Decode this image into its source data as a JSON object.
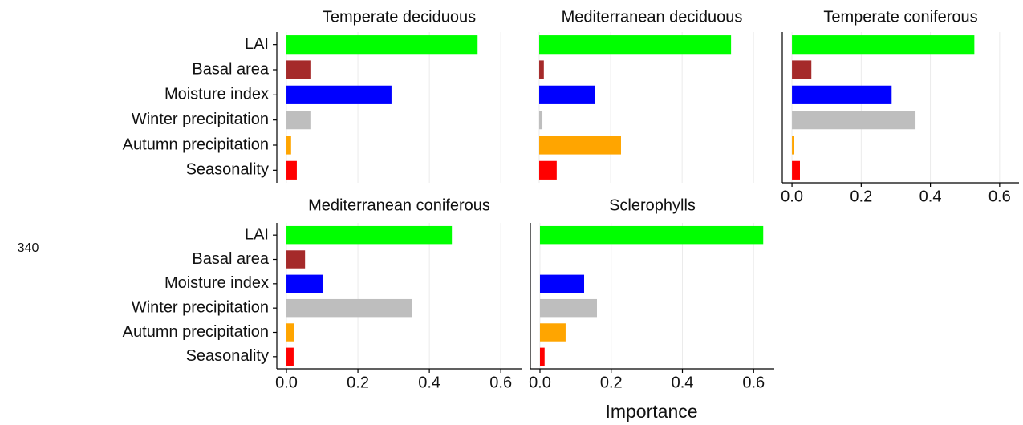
{
  "chart_data": [
    {
      "type": "bar",
      "orientation": "horizontal",
      "title": "Temperate deciduous",
      "categories": [
        "LAI",
        "Basal area",
        "Moisture index",
        "Winter precipitation",
        "Autumn precipitation",
        "Seasonality"
      ],
      "values": [
        0.535,
        0.067,
        0.294,
        0.067,
        0.013,
        0.029
      ],
      "colors": [
        "#00ff00",
        "#a52a2a",
        "#0000ff",
        "#bebebe",
        "#ffa500",
        "#ff0000"
      ],
      "xlim": [
        -0.027,
        0.658
      ],
      "xticks": [
        {
          "value": 0,
          "label": "0.0"
        },
        0.2,
        0.4,
        0.6
      ],
      "tick_labels": false,
      "grid": true
    },
    {
      "type": "bar",
      "orientation": "horizontal",
      "title": "Mediterranean deciduous",
      "values": [
        0.537,
        0.013,
        0.155,
        0.009,
        0.229,
        0.049
      ],
      "colors": [
        "#00ff00",
        "#a52a2a",
        "#0000ff",
        "#bebebe",
        "#ffa500",
        "#ff0000"
      ],
      "xlim": [
        -0.027,
        0.658
      ],
      "xticks": [
        {
          "value": 0,
          "label": "0.0"
        },
        0.2,
        0.4,
        0.6
      ],
      "tick_labels": false,
      "grid": true
    },
    {
      "type": "bar",
      "orientation": "horizontal",
      "title": "Temperate coniferous",
      "values": [
        0.527,
        0.056,
        0.288,
        0.357,
        0.005,
        0.023
      ],
      "colors": [
        "#00ff00",
        "#a52a2a",
        "#0000ff",
        "#bebebe",
        "#ffa500",
        "#ff0000"
      ],
      "xlim": [
        -0.028,
        0.656
      ],
      "xticks": [
        {
          "value": 0,
          "label": "0.0"
        },
        0.2,
        0.4,
        0.6
      ],
      "tick_labels": true,
      "grid": true
    },
    {
      "type": "bar",
      "orientation": "horizontal",
      "title": "Mediterranean coniferous",
      "categories": [
        "LAI",
        "Basal area",
        "Moisture index",
        "Winter precipitation",
        "Autumn precipitation",
        "Seasonality"
      ],
      "values": [
        0.463,
        0.052,
        0.101,
        0.351,
        0.022,
        0.02
      ],
      "colors": [
        "#00ff00",
        "#a52a2a",
        "#0000ff",
        "#bebebe",
        "#ffa500",
        "#ff0000"
      ],
      "xlim": [
        -0.027,
        0.658
      ],
      "xticks": [
        {
          "value": 0,
          "label": "0.0"
        },
        0.2,
        0.4,
        0.6
      ],
      "tick_labels": true,
      "grid": true
    },
    {
      "type": "bar",
      "orientation": "horizontal",
      "title": "Sclerophylls",
      "values": [
        0.627,
        null,
        0.124,
        0.16,
        0.072,
        0.013
      ],
      "colors": [
        "#00ff00",
        "#a52a2a",
        "#0000ff",
        "#bebebe",
        "#ffa500",
        "#ff0000"
      ],
      "xlim": [
        -0.027,
        0.658
      ],
      "xticks": [
        {
          "value": 0,
          "label": "0.0"
        },
        0.2,
        0.4,
        0.6
      ],
      "tick_labels": true,
      "grid": true
    }
  ],
  "xlabel": "Importance",
  "margin_text": "340"
}
